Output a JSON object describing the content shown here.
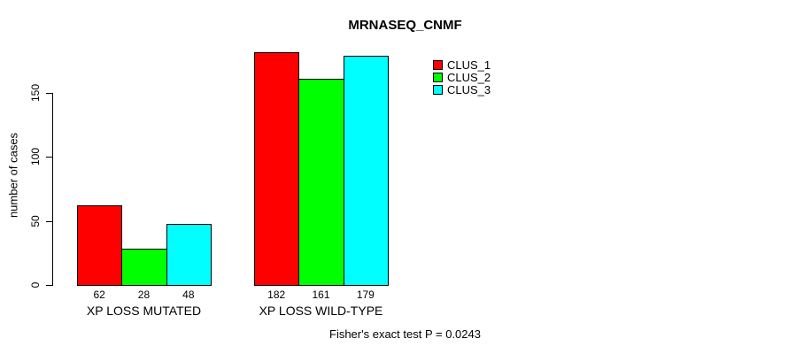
{
  "background_color": "#FFFFFF",
  "text_color": "#000000",
  "chart_data": {
    "type": "bar",
    "grouped": true,
    "title": "MRNASEQ_CNMF",
    "xlabel": "",
    "ylabel": "number of cases",
    "categories": [
      "XP LOSS MUTATED",
      "XP LOSS WILD-TYPE"
    ],
    "series": [
      {
        "name": "CLUS_1",
        "color": "#FF0000",
        "values": [
          62,
          182
        ]
      },
      {
        "name": "CLUS_2",
        "color": "#00FF00",
        "values": [
          28,
          161
        ]
      },
      {
        "name": "CLUS_3",
        "color": "#00FFFF",
        "values": [
          48,
          179
        ]
      }
    ],
    "bar_value_labels": [
      [
        62,
        28,
        48
      ],
      [
        182,
        161,
        179
      ]
    ],
    "yticks": [
      0,
      50,
      100,
      150
    ],
    "ylim": [
      0,
      188
    ],
    "grid": false,
    "bar_border_color": "#000000",
    "legend_position": "top-right",
    "legend_entries": [
      "CLUS_1",
      "CLUS_2",
      "CLUS_3"
    ],
    "annotation": "Fisher's exact test P = 0.0243"
  }
}
